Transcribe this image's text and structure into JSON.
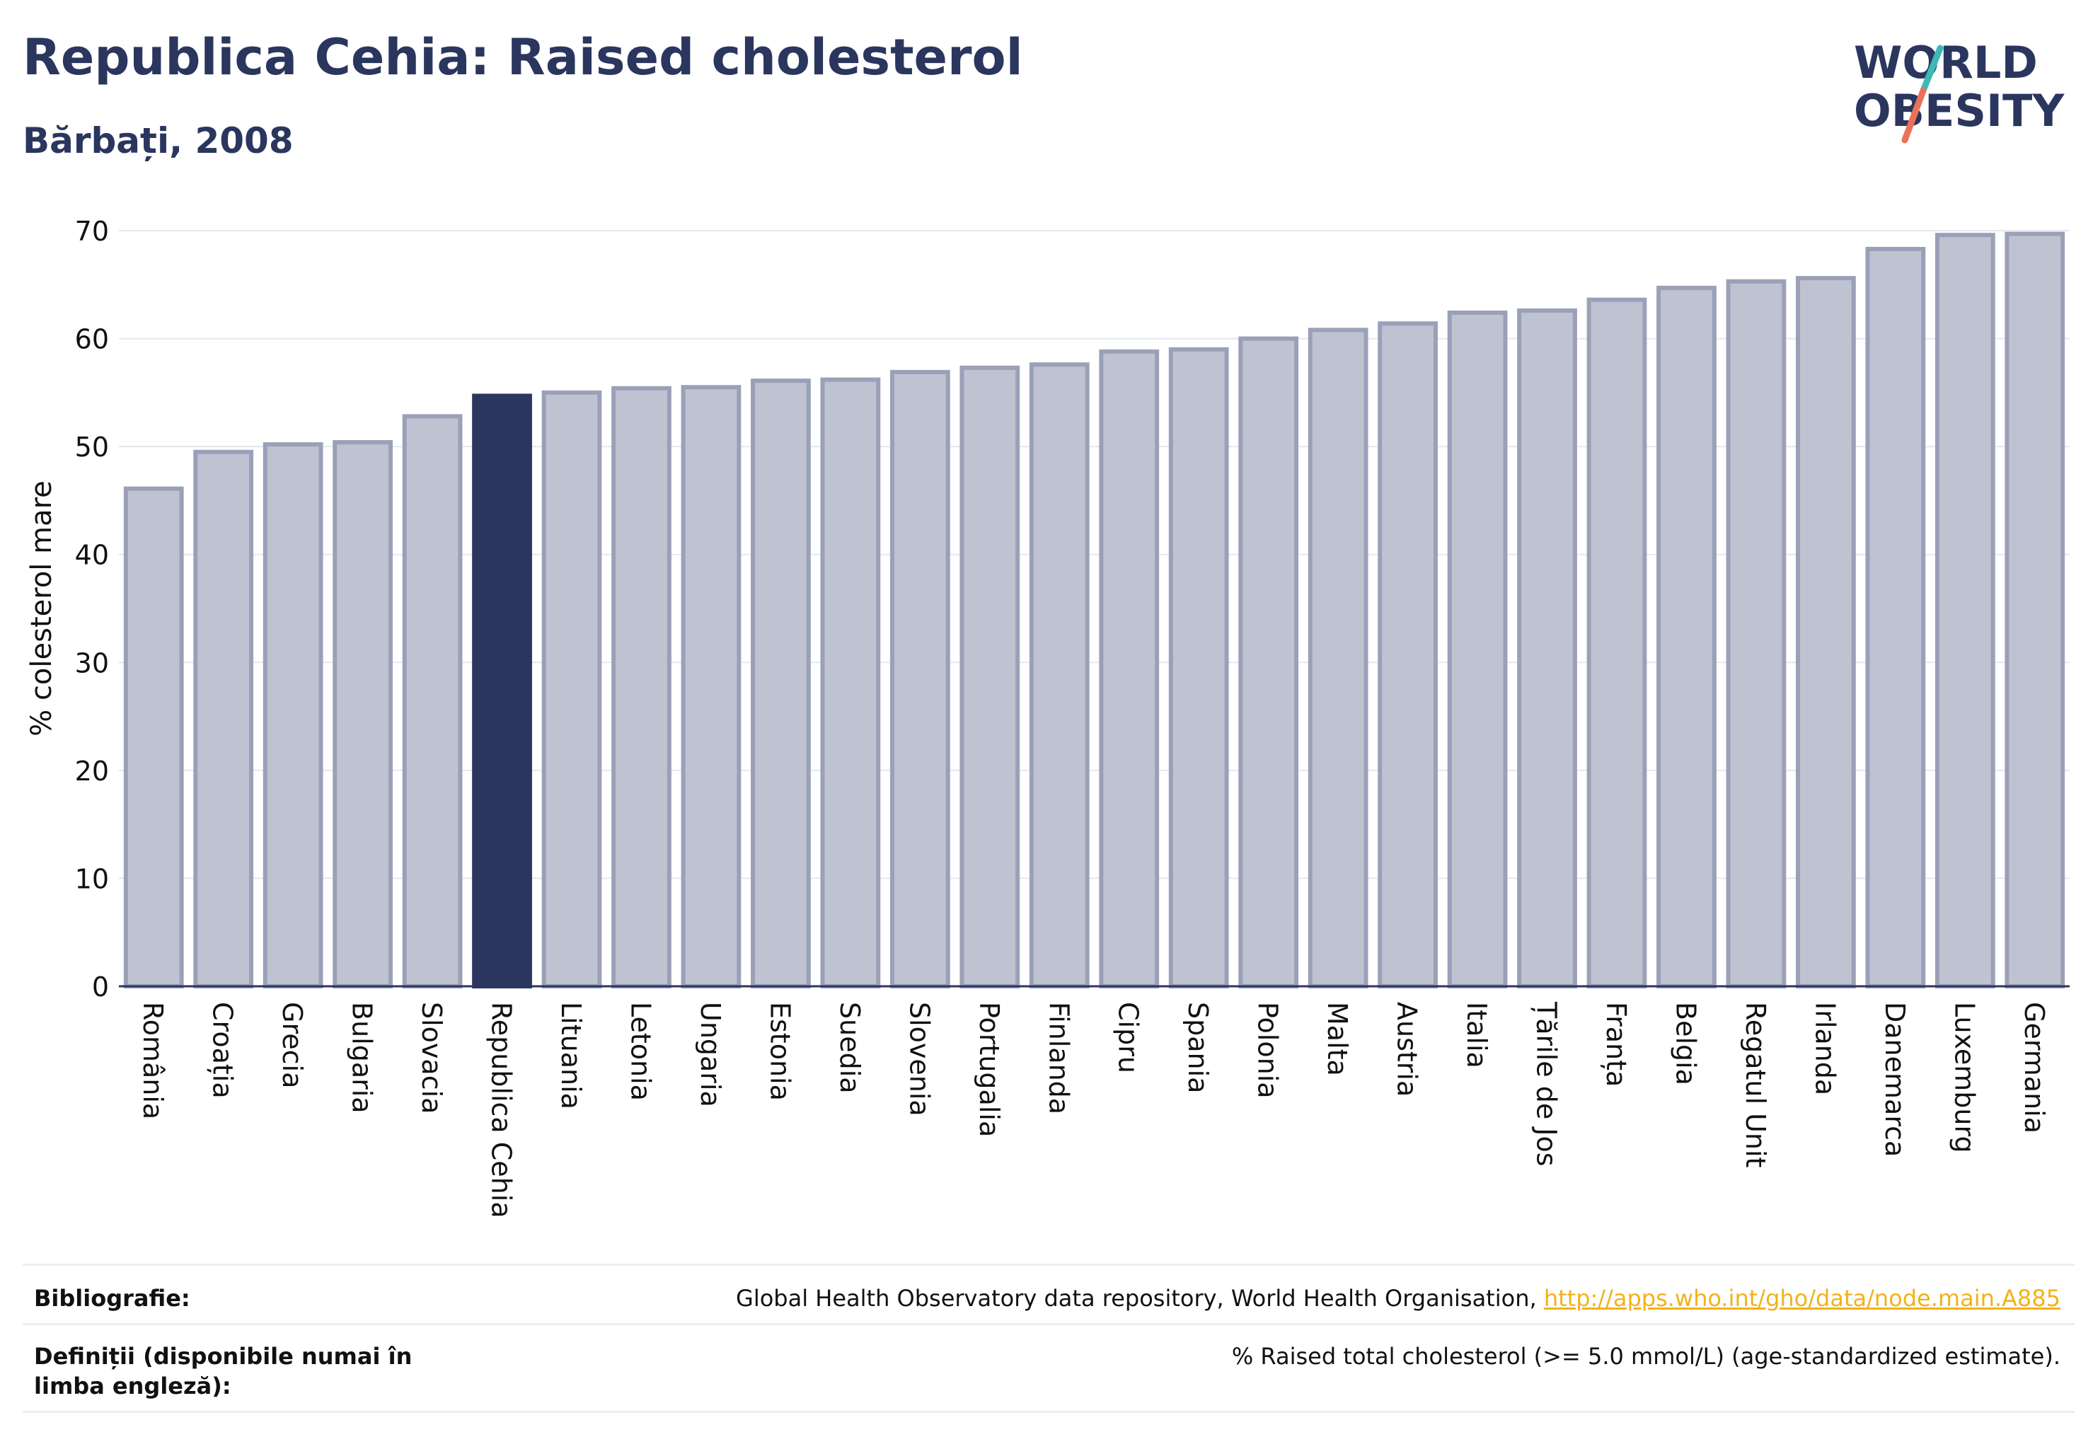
{
  "header": {
    "title": "Republica Cehia: Raised cholesterol",
    "subtitle": "Bărbați, 2008"
  },
  "logo": {
    "line1": "WORLD",
    "line2": "OBESITY",
    "colors": {
      "text": "#2b365e",
      "slash_top": "#3cb9b5",
      "slash_bottom": "#e8735a"
    }
  },
  "chart_data": {
    "type": "bar",
    "ylabel": "% colesterol mare",
    "ylim": [
      0,
      70
    ],
    "yticks": [
      0,
      10,
      20,
      30,
      40,
      50,
      60,
      70
    ],
    "grid": true,
    "highlight": "Republica Cehia",
    "colors": {
      "bar": "#bfc2d0",
      "bar_border": "#9aa0b8",
      "highlight": "#2b365e"
    },
    "categories": [
      "România",
      "Croația",
      "Grecia",
      "Bulgaria",
      "Slovacia",
      "Republica Cehia",
      "Lituania",
      "Letonia",
      "Ungaria",
      "Estonia",
      "Suedia",
      "Slovenia",
      "Portugalia",
      "Finlanda",
      "Cipru",
      "Spania",
      "Polonia",
      "Malta",
      "Austria",
      "Italia",
      "Țările de Jos",
      "Franța",
      "Belgia",
      "Regatul Unit",
      "Irlanda",
      "Danemarca",
      "Luxemburg",
      "Germania"
    ],
    "values": [
      46.1,
      49.5,
      50.2,
      50.4,
      52.8,
      54.7,
      55.0,
      55.4,
      55.5,
      56.1,
      56.2,
      56.9,
      57.3,
      57.6,
      58.8,
      59.0,
      60.0,
      60.8,
      61.4,
      62.4,
      62.6,
      63.6,
      64.7,
      65.3,
      65.6,
      68.3,
      69.6,
      69.7
    ]
  },
  "footer": {
    "bibliography_label": "Bibliografie:",
    "bibliography_text": "Global Health Observatory data repository, World Health Organisation, ",
    "bibliography_link": "http://apps.who.int/gho/data/node.main.A885",
    "definitions_label": "Definiții (disponibile numai în limba engleză):",
    "definitions_text": "% Raised total cholesterol (>= 5.0 mmol/L) (age-standardized estimate)."
  }
}
